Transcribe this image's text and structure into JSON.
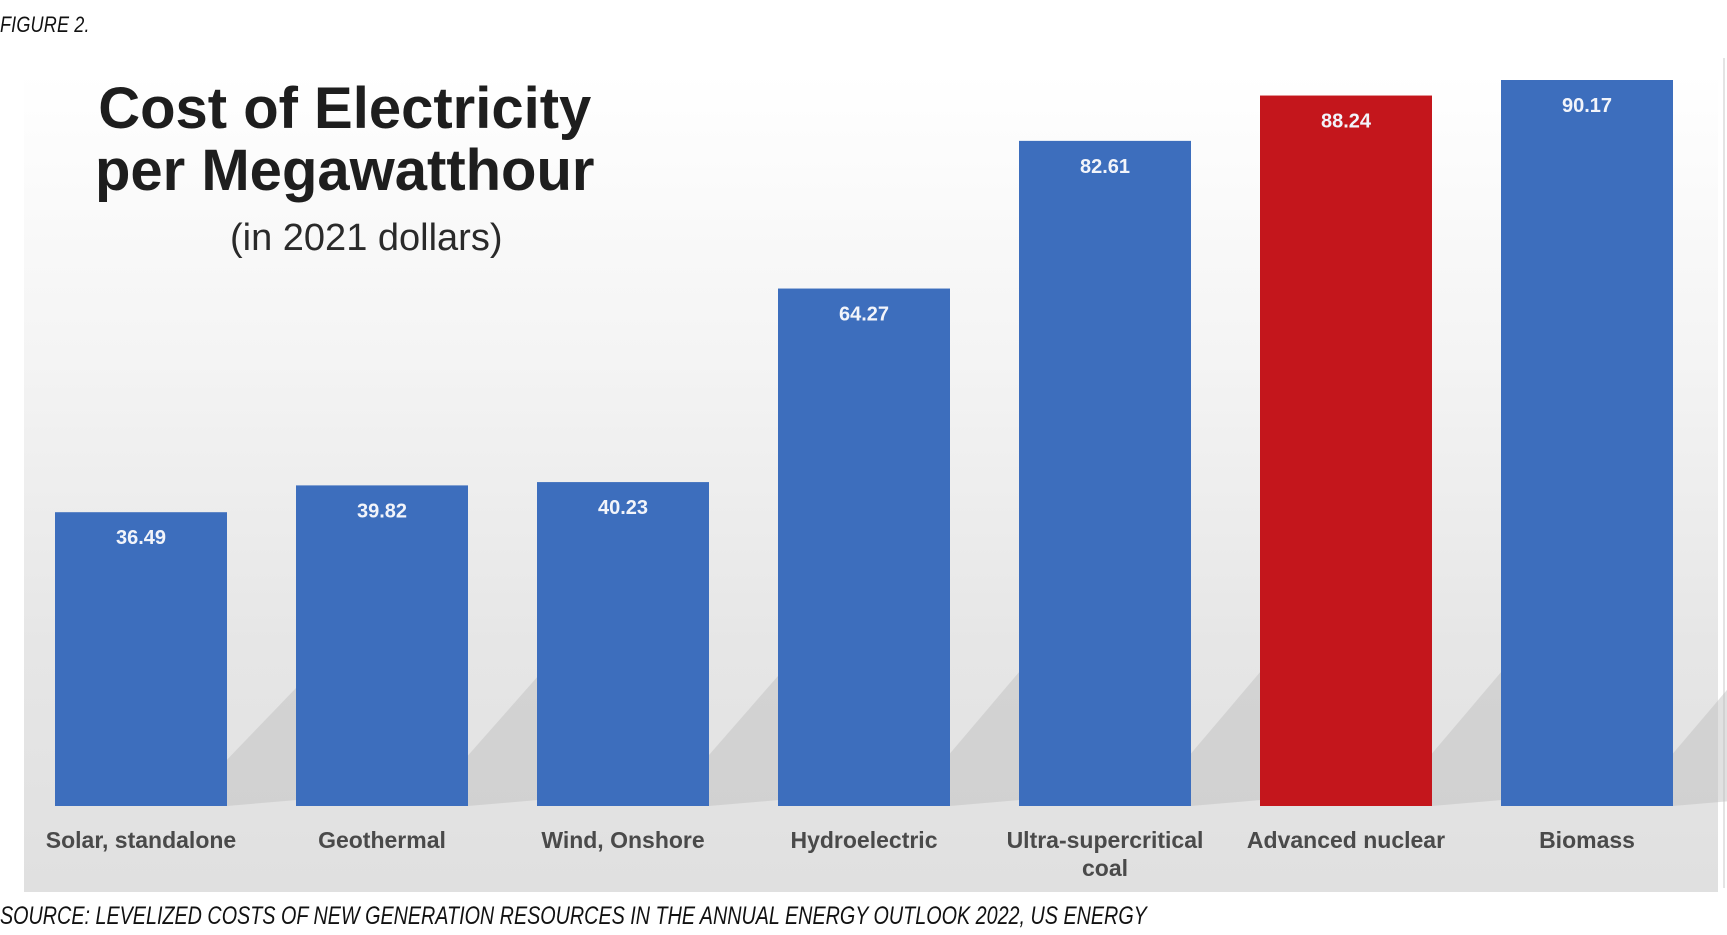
{
  "figure_label": "FIGURE 2.",
  "source_text": "SOURCE: LEVELIZED COSTS OF NEW GENERATION RESOURCES IN THE ANNUAL ENERGY OUTLOOK 2022, US ENERGY",
  "chart_data": {
    "type": "bar",
    "title": "Cost of Electricity per Megawatthour",
    "title_lines": [
      "Cost of Electricity",
      "per Megawatthour"
    ],
    "subtitle": "(in 2021 dollars)",
    "categories": [
      "Solar, standalone",
      "Geothermal",
      "Wind, Onshore",
      "Hydroelectric",
      "Ultra-supercritical coal",
      "Advanced nuclear",
      "Biomass"
    ],
    "values": [
      36.49,
      39.82,
      40.23,
      64.27,
      82.61,
      88.24,
      90.17
    ],
    "value_labels": [
      "36.49",
      "39.82",
      "40.23",
      "64.27",
      "82.61",
      "88.24",
      "90.17"
    ],
    "bar_colors": [
      "#3d6ebd",
      "#3d6ebd",
      "#3d6ebd",
      "#3d6ebd",
      "#3d6ebd",
      "#c4161c",
      "#3d6ebd"
    ],
    "highlight_category": "Advanced nuclear",
    "xlabel": "",
    "ylabel": "",
    "ylim": [
      0,
      90.17
    ],
    "grid": false,
    "legend": "none"
  }
}
